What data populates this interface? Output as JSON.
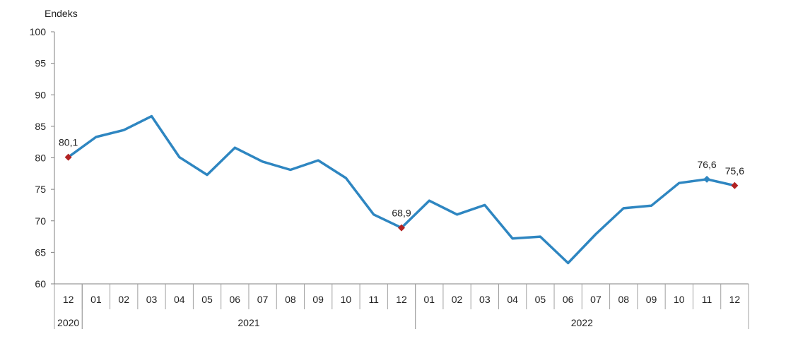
{
  "chart_data": {
    "type": "line",
    "ylabel": "Endeks",
    "ylim": [
      60,
      100
    ],
    "yticks": [
      "60",
      "65",
      "70",
      "75",
      "80",
      "85",
      "90",
      "95",
      "100"
    ],
    "grid": false,
    "categories": [
      "12",
      "01",
      "02",
      "03",
      "04",
      "05",
      "06",
      "07",
      "08",
      "09",
      "10",
      "11",
      "12",
      "01",
      "02",
      "03",
      "04",
      "05",
      "06",
      "07",
      "08",
      "09",
      "10",
      "11",
      "12"
    ],
    "year_groups": [
      {
        "label": "2020",
        "start": 0,
        "end": 0
      },
      {
        "label": "2021",
        "start": 1,
        "end": 12
      },
      {
        "label": "2022",
        "start": 13,
        "end": 24
      }
    ],
    "series": [
      {
        "values": [
          80.1,
          83.3,
          84.4,
          86.6,
          80.1,
          77.3,
          81.6,
          79.4,
          78.1,
          79.6,
          76.8,
          71.0,
          68.9,
          73.2,
          71.0,
          72.5,
          67.2,
          67.5,
          63.3,
          67.9,
          72.0,
          72.4,
          76.0,
          76.6,
          75.6
        ],
        "color": "#2e86c1"
      }
    ],
    "highlights": [
      {
        "index": 0,
        "label": "80,1",
        "color": "#b22222"
      },
      {
        "index": 12,
        "label": "68,9",
        "color": "#b22222"
      },
      {
        "index": 23,
        "label": "76,6",
        "color": "#2e86c1"
      },
      {
        "index": 24,
        "label": "75,6",
        "color": "#b22222"
      }
    ]
  }
}
